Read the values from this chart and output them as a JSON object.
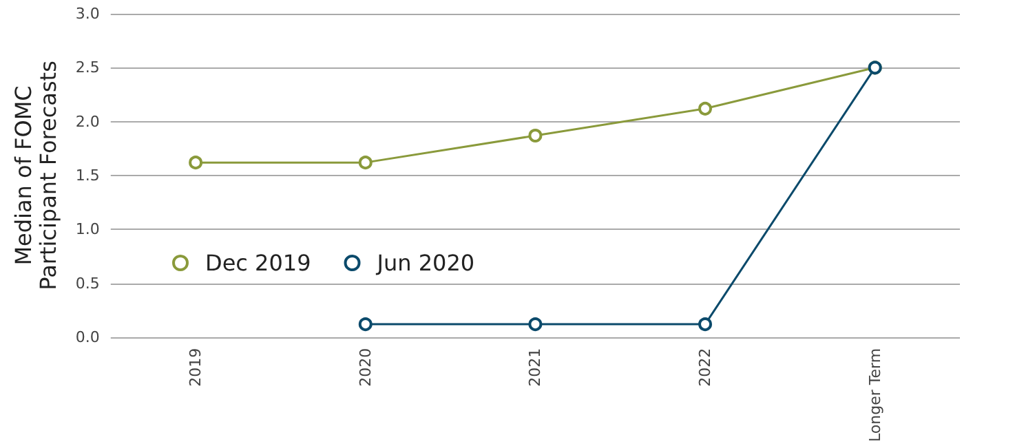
{
  "chart_data": {
    "type": "line",
    "ylabel": "Median of FOMC\nParticipant Forecasts",
    "categories": [
      "2019",
      "2020",
      "2021",
      "2022",
      "Longer Term"
    ],
    "series": [
      {
        "name": "Dec 2019",
        "color": "#8a9a3b",
        "values": [
          1.62,
          1.62,
          1.87,
          2.12,
          2.5
        ]
      },
      {
        "name": "Jun 2020",
        "color": "#0b4a6b",
        "values": [
          null,
          0.12,
          0.12,
          0.12,
          2.5
        ]
      }
    ],
    "ylim": [
      0,
      3
    ],
    "yticks": [
      {
        "value": 0,
        "label": "0.0"
      },
      0.5,
      {
        "value": 1,
        "label": "1.0"
      },
      1.5,
      {
        "value": 2,
        "label": "2.0"
      },
      2.5,
      {
        "value": 3,
        "label": "3.0"
      }
    ],
    "grid": "y",
    "legend": "left",
    "marker": "circle",
    "line_style": "solid"
  }
}
